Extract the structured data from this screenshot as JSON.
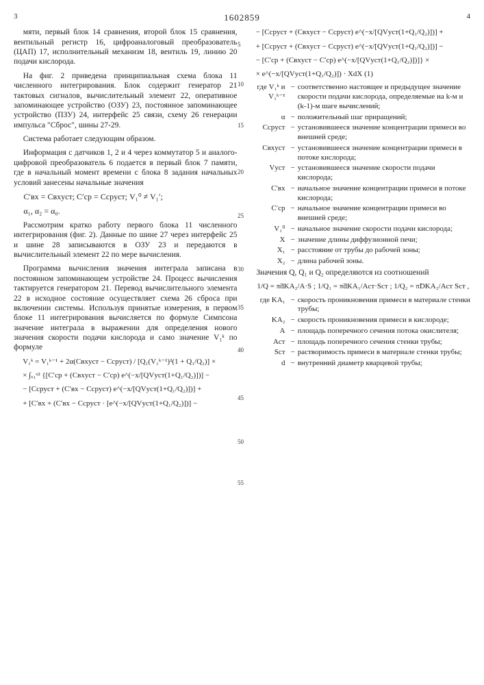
{
  "header": {
    "colLeft": "3",
    "colRight": "4",
    "docnum": "1602859"
  },
  "lineNumbers": [
    "5",
    "10",
    "15",
    "20",
    "25",
    "30",
    "35",
    "40",
    "45",
    "50",
    "55"
  ],
  "left": {
    "p1": "мяти, первый блок 14 сравнения, второй блок 15 сравнения, вентильный регистр 16, цифроаналоговый преобразователь (ЦАП) 17, исполнительный механизм 18, вентиль 19, линию 20 подачи кислорода.",
    "p2": "На фиг. 2 приведена принципиальная схема блока 11 численного интегрирования. Блок содержит генератор 21 тактовых сигналов, вычислительный элемент 22, оперативное запоминающее устройство (ОЗУ) 23, постоянное запоминающее устройство (ПЗУ) 24, интерфейс 25 связи, схему 26 генерации импульса \"Сброс\", шины 27-29.",
    "p3": "Система работает следующим образом.",
    "p4": "Информация с датчиков 1, 2 и 4 через коммутатор 5 и аналого-цифровой преобразователь 6 подается в первый блок 7 памяти, где в начальный момент времени с блока 8 задания начальных условий занесены начальные значения",
    "f1a": "C′ʙx = Cʙxуст;  C′cp = Ccpуст;  V₁⁰ ≠ V₁′;",
    "f1b": "α₁, α₂ = α₀.",
    "p5": "Рассмотрим кратко работу первого блока 11 численного интегрирования (фиг. 2). Данные по шине 27 через интерфейс 25 и шине 28 записываются в ОЗУ 23 и передаются в вычислительный элемент 22 по мере вычисления.",
    "p6": "Программа вычисления значения интеграла записана в постоянном запоминающем устройстве 24. Процесс вычисления тактируется генератором 21. Перевод вычислительного элемента 22 в исходное состояние осуществляет схема 26 сброса при включении системы. Используя принятые измерения, в первом блоке 11 интегрирования вычисляется по формуле Симпсона значение интеграла в выражении для определения нового значения скорости подачи кислорода и само значение V₁ᵏ по формуле",
    "f2a": "V₁ᵏ = V₁ᵏ⁻¹ + 2α(Cʙxуст − Ccpуст) / [Q₁(V₁ᵏ⁻¹)²(1 + Q₁/Q₂)] ×",
    "f2b": "× ∫ₓ₁ˣ² {[C′cp + (Cʙxуст − C′cp) e^(−x/[QVуст(1+Q₁/Q₂)])] −",
    "f2c": "− [Ccpуст + (C′ʙx − Ccpуст) e^(−x/[QVуст(1+Q₁/Q₂)])] +",
    "f2d": "+ [C′ʙx + (C′ʙx − Ccpуст · [e^(−x/[QVуст(1+Q₁/Q₂)])] −"
  },
  "rightTop": {
    "f3a": "− [Ccpуст + (Cʙxуст − Ccpуст) e^(−x/[QVуст(1+Q₁/Q₂)])] +",
    "f3b": "+ [Ccpуст + (Cʙxуст − Ccpуст) e^(−x/[QVуст(1+Q₁/Q₂)])] −",
    "f3c": "− [C′cp + (Cʙxуст − C′cp) e^(−x/[QVуст(1+Q₁/Q₂)])]} ×",
    "f3d": "× e^(−x/[QVуст(1+Q₁/Q₂)]) · XdX         (1)"
  },
  "defs": [
    {
      "sym": "где V₁ᵏ и V₁ᵏ⁻¹",
      "txt": "соответственно настоящее и предыдущее значение скорости подачи кислорода, определяемые на k-м и (k-1)-м шаге вычислений;"
    },
    {
      "sym": "α",
      "txt": "положительный шаг приращений;"
    },
    {
      "sym": "Ccpуст",
      "txt": "установившееся значение концентрации примеси во внешней среде;"
    },
    {
      "sym": "Cʙxуст",
      "txt": "установившееся значение концентрации примеси в потоке кислорода;"
    },
    {
      "sym": "Vуст",
      "txt": "установившееся значение скорости подачи кислорода;"
    },
    {
      "sym": "C′ʙx",
      "txt": "начальное значение концентрации примеси в потоке кислорода;"
    },
    {
      "sym": "C′cp",
      "txt": "начальное значение концентрации примеси во внешней среде;"
    },
    {
      "sym": "V₁⁰",
      "txt": "начальное значение скорости подачи кислорода;"
    },
    {
      "sym": "X",
      "txt": "значение длины диффузионной печи;"
    },
    {
      "sym": "X₁",
      "txt": "расстояние от трубы до рабочей зоны;"
    },
    {
      "sym": "X₂",
      "txt": "длина рабочей зоны."
    }
  ],
  "right2": {
    "p1": "Значения Q, Q₁ и Q₂ определяются из соотношений",
    "f4": "1/Q = π̃dKA₂/A·S ;   1/Q₁ = π̃dKA₁/Aст·Sст ;   1/Q₂ = π̃DKA₂/Aст Sст ,"
  },
  "defs2": [
    {
      "sym": "где KA₁",
      "txt": "скорость проникновения примеси в материале стенки трубы;"
    },
    {
      "sym": "KA₂",
      "txt": "скорость проникновения примеси в кислороде;"
    },
    {
      "sym": "A",
      "txt": "площадь поперечного сечения потока окислителя;"
    },
    {
      "sym": "Aст",
      "txt": "площадь поперечного сечения стенки трубы;"
    },
    {
      "sym": "Sст",
      "txt": "растворимость примеси в материале стенки трубы;"
    },
    {
      "sym": "d",
      "txt": "внутренний диаметр кварцевой трубы;"
    }
  ]
}
